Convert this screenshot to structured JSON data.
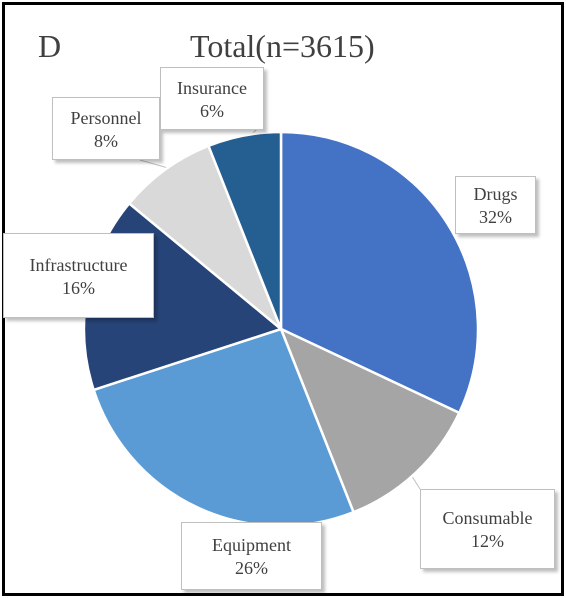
{
  "chart_data": {
    "type": "pie",
    "panel_letter": "D",
    "title": "Total(n=3615)",
    "slices": [
      {
        "name": "Drugs",
        "value": 32,
        "label": "32%",
        "color": "#4472c4"
      },
      {
        "name": "Consumable",
        "value": 12,
        "label": "12%",
        "color": "#a5a5a5"
      },
      {
        "name": "Equipment",
        "value": 26,
        "label": "26%",
        "color": "#5b9bd5"
      },
      {
        "name": "Infrastructure",
        "value": 16,
        "label": "16%",
        "color": "#264478"
      },
      {
        "name": "Personnel",
        "value": 8,
        "label": "8%",
        "color": "#d9d9d9"
      },
      {
        "name": "Insurance",
        "value": 6,
        "label": "6%",
        "color": "#255e91"
      }
    ]
  }
}
